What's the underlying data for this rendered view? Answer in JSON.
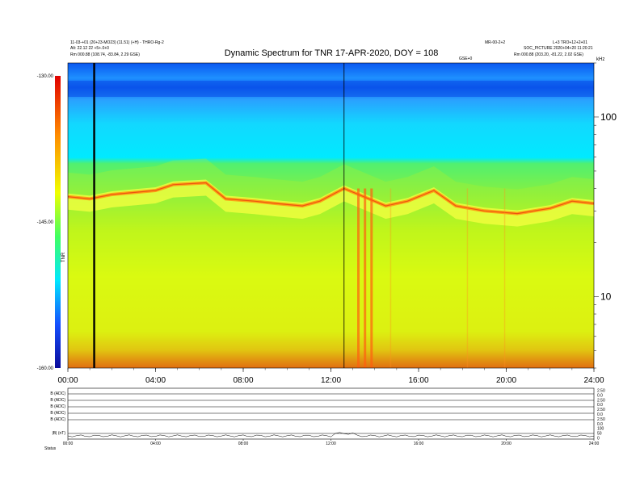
{
  "chart_data": {
    "type": "heatmap",
    "title": "Dynamic Spectrum for TNR 17-APR-2020, DOY = 108",
    "header_left": [
      "11-03-+01 (20+23-MO23) (11.51) (+H) - THRO-Rg-2",
      "Alt: 22.12 22 +5+.0+0",
      "Rm 000.88 (108.74, -83.84, 2.29 GSE)"
    ],
    "header_right": [
      "MR-00-2+2",
      "L+3 TRO+12+2+01",
      "SOC_PICTURE 2020+04+20 11:20:21",
      "Rm 000.88 (203.20, -81.22, 2.02 GSE)"
    ],
    "gse_label": "GSE+0",
    "x_ticks": [
      "00:00",
      "04:00",
      "08:00",
      "12:00",
      "16:00",
      "20:00",
      "24:00"
    ],
    "x_range_hours": [
      0,
      24
    ],
    "y_scale": "log",
    "y_range": [
      4,
      200
    ],
    "y_ticks": [
      {
        "value": 100,
        "label": "100"
      },
      {
        "value": 10,
        "label": "10"
      }
    ],
    "colorbar": {
      "labels": [
        "-130.00",
        "-145.00",
        "-160.00"
      ],
      "range": [
        -160,
        -130
      ],
      "axis_label": "TNR"
    },
    "vertical_markers_hours": [
      {
        "t": 1.2,
        "heavy": true
      },
      {
        "t": 12.6,
        "heavy": false
      }
    ],
    "bright_line_profile": [
      {
        "t": 0.0,
        "f": 36
      },
      {
        "t": 1.0,
        "f": 35
      },
      {
        "t": 2.0,
        "f": 37
      },
      {
        "t": 3.0,
        "f": 38
      },
      {
        "t": 4.0,
        "f": 39
      },
      {
        "t": 4.8,
        "f": 42
      },
      {
        "t": 6.3,
        "f": 43
      },
      {
        "t": 7.2,
        "f": 35
      },
      {
        "t": 8.5,
        "f": 34
      },
      {
        "t": 9.5,
        "f": 33
      },
      {
        "t": 10.7,
        "f": 32
      },
      {
        "t": 11.5,
        "f": 34
      },
      {
        "t": 12.6,
        "f": 40
      },
      {
        "t": 13.5,
        "f": 36
      },
      {
        "t": 14.5,
        "f": 32
      },
      {
        "t": 15.5,
        "f": 34
      },
      {
        "t": 16.7,
        "f": 39
      },
      {
        "t": 17.7,
        "f": 32
      },
      {
        "t": 19.0,
        "f": 30
      },
      {
        "t": 20.5,
        "f": 29
      },
      {
        "t": 22.0,
        "f": 31
      },
      {
        "t": 23.0,
        "f": 34
      },
      {
        "t": 24.0,
        "f": 33
      }
    ],
    "bottom_panel": {
      "row_labels": [
        "B (ADC)",
        "B (ADC)",
        "B (ADC)",
        "B (ADC)",
        "B (ADC)",
        "|B| (nT)",
        "Status"
      ],
      "right_labels": [
        "2.50",
        "0.0",
        "2.50",
        "0.0",
        "2.50",
        "0.0",
        "2.50",
        "0.0",
        "100",
        "50",
        "0"
      ],
      "x_ticks": [
        "00:00",
        "04:00",
        "08:00",
        "12:00",
        "16:00",
        "20:00",
        "24:00"
      ],
      "status_label": "Status"
    }
  }
}
